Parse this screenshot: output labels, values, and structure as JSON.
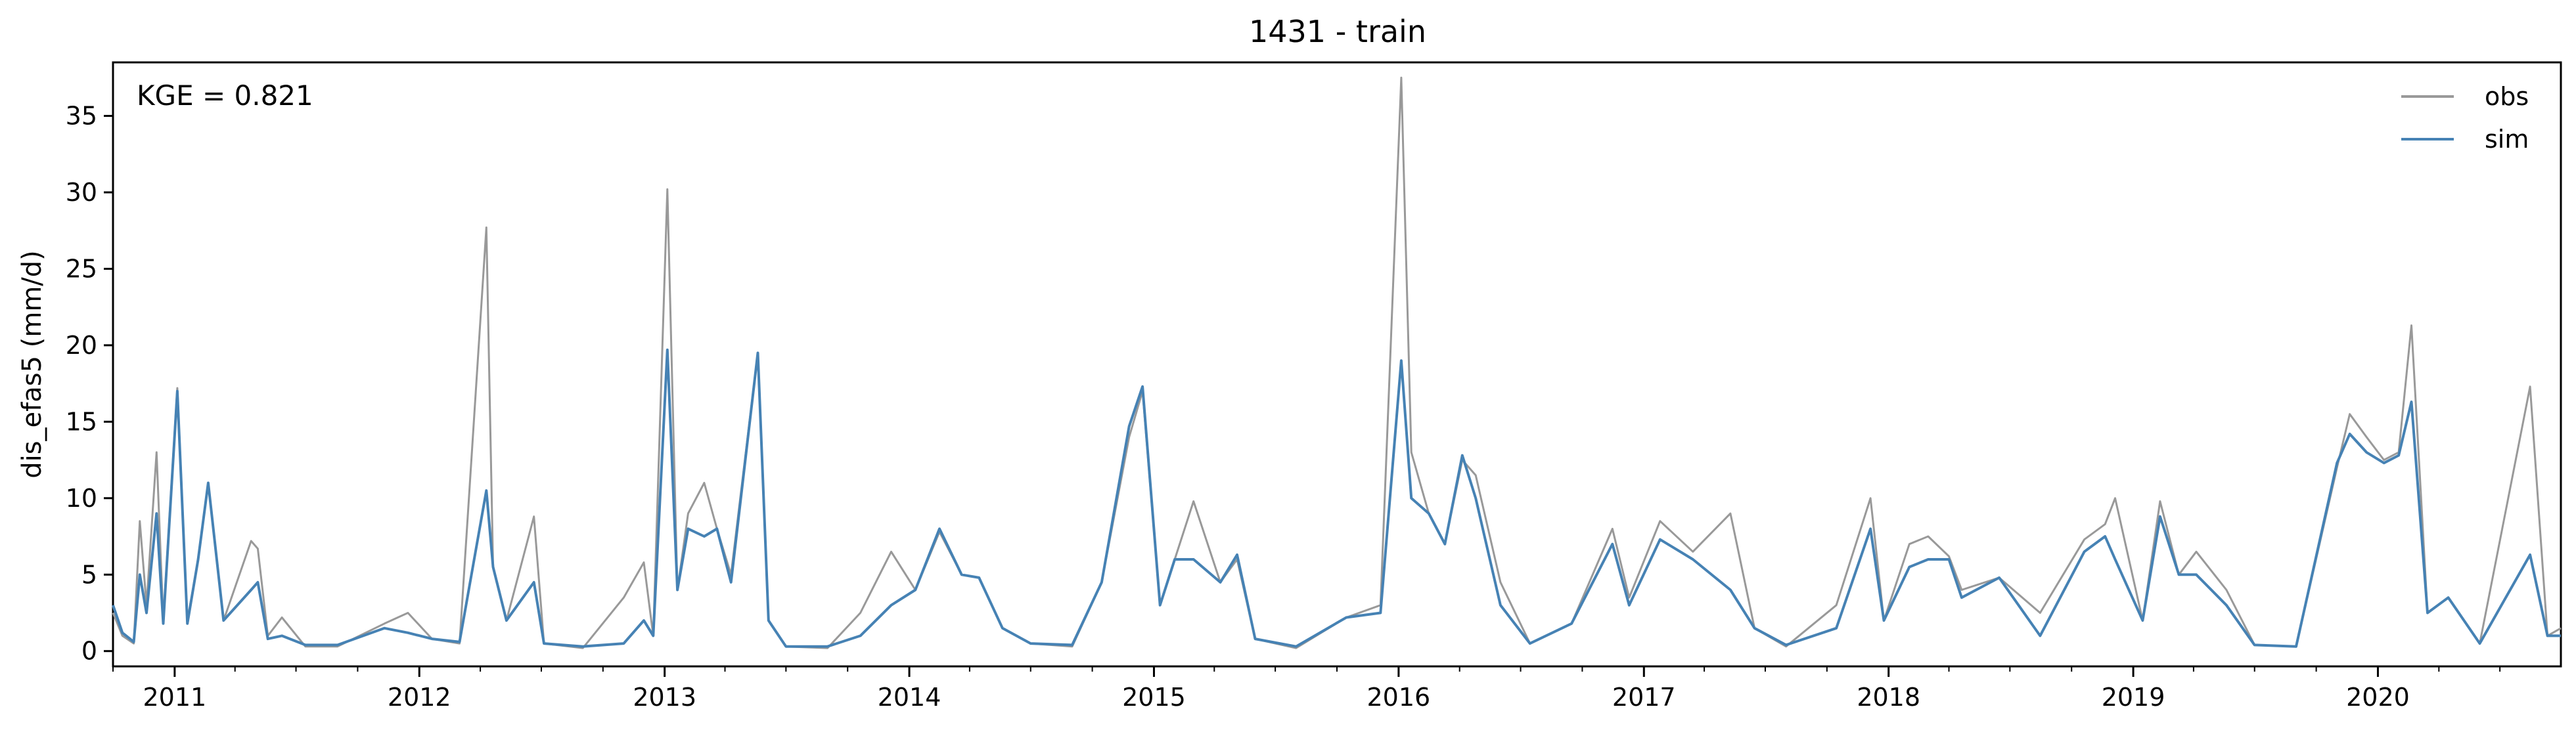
{
  "chart_data": {
    "type": "line",
    "title": "1431 - train",
    "xlabel": "",
    "ylabel": "dis_efas5 (mm/d)",
    "xlim": [
      "2010-10-01",
      "2020-09-30"
    ],
    "ylim": [
      -1,
      38.5
    ],
    "grid": false,
    "legend_position": "top-right",
    "annotation": "KGE = 0.821",
    "x_ticks": [
      "2011",
      "2012",
      "2013",
      "2014",
      "2015",
      "2016",
      "2017",
      "2018",
      "2019",
      "2020"
    ],
    "y_ticks": [
      "0",
      "5",
      "10",
      "15",
      "20",
      "25",
      "30",
      "35"
    ],
    "series": [
      {
        "name": "obs",
        "color": "#999999",
        "points": [
          [
            "2010-10-01",
            2.5
          ],
          [
            "2010-10-15",
            1.0
          ],
          [
            "2010-11-01",
            0.5
          ],
          [
            "2010-11-10",
            8.5
          ],
          [
            "2010-11-20",
            3.0
          ],
          [
            "2010-12-05",
            13.0
          ],
          [
            "2010-12-15",
            2.0
          ],
          [
            "2011-01-05",
            17.2
          ],
          [
            "2011-01-20",
            2.0
          ],
          [
            "2011-02-05",
            6.0
          ],
          [
            "2011-02-20",
            11.0
          ],
          [
            "2011-03-15",
            2.0
          ],
          [
            "2011-04-25",
            7.2
          ],
          [
            "2011-05-05",
            6.7
          ],
          [
            "2011-05-20",
            1.0
          ],
          [
            "2011-06-10",
            2.2
          ],
          [
            "2011-07-15",
            0.3
          ],
          [
            "2011-09-01",
            0.3
          ],
          [
            "2011-11-10",
            1.8
          ],
          [
            "2011-12-15",
            2.5
          ],
          [
            "2012-01-20",
            0.8
          ],
          [
            "2012-03-01",
            0.5
          ],
          [
            "2012-04-10",
            27.7
          ],
          [
            "2012-04-20",
            5.5
          ],
          [
            "2012-05-10",
            2.0
          ],
          [
            "2012-06-20",
            8.8
          ],
          [
            "2012-07-05",
            0.5
          ],
          [
            "2012-09-01",
            0.2
          ],
          [
            "2012-11-01",
            3.5
          ],
          [
            "2012-12-01",
            5.8
          ],
          [
            "2012-12-15",
            1.0
          ],
          [
            "2013-01-05",
            30.2
          ],
          [
            "2013-01-20",
            4.0
          ],
          [
            "2013-02-05",
            9.0
          ],
          [
            "2013-03-01",
            11.0
          ],
          [
            "2013-03-20",
            8.0
          ],
          [
            "2013-04-10",
            5.0
          ],
          [
            "2013-05-20",
            19.5
          ],
          [
            "2013-06-05",
            2.0
          ],
          [
            "2013-07-01",
            0.3
          ],
          [
            "2013-09-01",
            0.2
          ],
          [
            "2013-10-20",
            2.5
          ],
          [
            "2013-12-05",
            6.5
          ],
          [
            "2014-01-10",
            4.0
          ],
          [
            "2014-02-15",
            7.8
          ],
          [
            "2014-03-20",
            5.0
          ],
          [
            "2014-04-15",
            4.8
          ],
          [
            "2014-05-20",
            1.5
          ],
          [
            "2014-07-01",
            0.5
          ],
          [
            "2014-09-01",
            0.3
          ],
          [
            "2014-10-15",
            4.5
          ],
          [
            "2014-11-25",
            14.0
          ],
          [
            "2014-12-15",
            17.0
          ],
          [
            "2015-01-10",
            3.0
          ],
          [
            "2015-02-01",
            6.0
          ],
          [
            "2015-03-01",
            9.8
          ],
          [
            "2015-04-10",
            4.5
          ],
          [
            "2015-05-05",
            6.0
          ],
          [
            "2015-06-01",
            0.8
          ],
          [
            "2015-08-01",
            0.2
          ],
          [
            "2015-10-15",
            2.2
          ],
          [
            "2015-12-05",
            3.0
          ],
          [
            "2016-01-05",
            37.5
          ],
          [
            "2016-01-20",
            13.0
          ],
          [
            "2016-02-15",
            9.0
          ],
          [
            "2016-03-10",
            7.0
          ],
          [
            "2016-04-05",
            12.5
          ],
          [
            "2016-04-25",
            11.5
          ],
          [
            "2016-06-01",
            4.5
          ],
          [
            "2016-07-15",
            0.5
          ],
          [
            "2016-09-15",
            1.8
          ],
          [
            "2016-11-15",
            8.0
          ],
          [
            "2016-12-10",
            3.5
          ],
          [
            "2017-01-25",
            8.5
          ],
          [
            "2017-03-15",
            6.5
          ],
          [
            "2017-05-10",
            9.0
          ],
          [
            "2017-06-15",
            1.5
          ],
          [
            "2017-08-01",
            0.3
          ],
          [
            "2017-10-15",
            3.0
          ],
          [
            "2017-12-05",
            10.0
          ],
          [
            "2017-12-25",
            2.0
          ],
          [
            "2018-02-01",
            7.0
          ],
          [
            "2018-03-01",
            7.5
          ],
          [
            "2018-04-01",
            6.2
          ],
          [
            "2018-04-20",
            4.0
          ],
          [
            "2018-06-15",
            4.8
          ],
          [
            "2018-08-15",
            2.5
          ],
          [
            "2018-10-20",
            7.3
          ],
          [
            "2018-11-20",
            8.3
          ],
          [
            "2018-12-05",
            10.0
          ],
          [
            "2019-01-15",
            2.0
          ],
          [
            "2019-02-10",
            9.8
          ],
          [
            "2019-03-10",
            5.0
          ],
          [
            "2019-04-05",
            6.5
          ],
          [
            "2019-05-20",
            4.0
          ],
          [
            "2019-07-01",
            0.4
          ],
          [
            "2019-09-01",
            0.3
          ],
          [
            "2019-11-01",
            12.0
          ],
          [
            "2019-11-20",
            15.5
          ],
          [
            "2019-12-15",
            14.0
          ],
          [
            "2020-01-10",
            12.5
          ],
          [
            "2020-02-01",
            13.0
          ],
          [
            "2020-02-20",
            21.3
          ],
          [
            "2020-03-15",
            2.5
          ],
          [
            "2020-04-15",
            3.5
          ],
          [
            "2020-06-01",
            0.5
          ],
          [
            "2020-08-15",
            17.3
          ],
          [
            "2020-09-10",
            1.0
          ],
          [
            "2020-09-30",
            1.5
          ]
        ]
      },
      {
        "name": "sim",
        "color": "#4682b4",
        "points": [
          [
            "2010-10-01",
            3.0
          ],
          [
            "2010-10-15",
            1.2
          ],
          [
            "2010-11-01",
            0.6
          ],
          [
            "2010-11-10",
            5.0
          ],
          [
            "2010-11-20",
            2.5
          ],
          [
            "2010-12-05",
            9.0
          ],
          [
            "2010-12-15",
            1.8
          ],
          [
            "2011-01-05",
            17.0
          ],
          [
            "2011-01-20",
            1.8
          ],
          [
            "2011-02-05",
            6.0
          ],
          [
            "2011-02-20",
            11.0
          ],
          [
            "2011-03-15",
            2.0
          ],
          [
            "2011-04-25",
            4.0
          ],
          [
            "2011-05-05",
            4.5
          ],
          [
            "2011-05-20",
            0.8
          ],
          [
            "2011-06-10",
            1.0
          ],
          [
            "2011-07-15",
            0.4
          ],
          [
            "2011-09-01",
            0.4
          ],
          [
            "2011-11-10",
            1.5
          ],
          [
            "2011-12-15",
            1.2
          ],
          [
            "2012-01-20",
            0.8
          ],
          [
            "2012-03-01",
            0.6
          ],
          [
            "2012-04-10",
            10.5
          ],
          [
            "2012-04-20",
            5.5
          ],
          [
            "2012-05-10",
            2.0
          ],
          [
            "2012-06-20",
            4.5
          ],
          [
            "2012-07-05",
            0.5
          ],
          [
            "2012-09-01",
            0.3
          ],
          [
            "2012-11-01",
            0.5
          ],
          [
            "2012-12-01",
            2.0
          ],
          [
            "2012-12-15",
            1.0
          ],
          [
            "2013-01-05",
            19.7
          ],
          [
            "2013-01-20",
            4.0
          ],
          [
            "2013-02-05",
            8.0
          ],
          [
            "2013-03-01",
            7.5
          ],
          [
            "2013-03-20",
            8.0
          ],
          [
            "2013-04-10",
            4.5
          ],
          [
            "2013-05-20",
            19.5
          ],
          [
            "2013-06-05",
            2.0
          ],
          [
            "2013-07-01",
            0.3
          ],
          [
            "2013-09-01",
            0.3
          ],
          [
            "2013-10-20",
            1.0
          ],
          [
            "2013-12-05",
            3.0
          ],
          [
            "2014-01-10",
            4.0
          ],
          [
            "2014-02-15",
            8.0
          ],
          [
            "2014-03-20",
            5.0
          ],
          [
            "2014-04-15",
            4.8
          ],
          [
            "2014-05-20",
            1.5
          ],
          [
            "2014-07-01",
            0.5
          ],
          [
            "2014-09-01",
            0.4
          ],
          [
            "2014-10-15",
            4.5
          ],
          [
            "2014-11-25",
            14.7
          ],
          [
            "2014-12-15",
            17.3
          ],
          [
            "2015-01-10",
            3.0
          ],
          [
            "2015-02-01",
            6.0
          ],
          [
            "2015-03-01",
            6.0
          ],
          [
            "2015-04-10",
            4.5
          ],
          [
            "2015-05-05",
            6.3
          ],
          [
            "2015-06-01",
            0.8
          ],
          [
            "2015-08-01",
            0.3
          ],
          [
            "2015-10-15",
            2.2
          ],
          [
            "2015-12-05",
            2.5
          ],
          [
            "2016-01-05",
            19.0
          ],
          [
            "2016-01-20",
            10.0
          ],
          [
            "2016-02-15",
            9.0
          ],
          [
            "2016-03-10",
            7.0
          ],
          [
            "2016-04-05",
            12.8
          ],
          [
            "2016-04-25",
            10.0
          ],
          [
            "2016-06-01",
            3.0
          ],
          [
            "2016-07-15",
            0.5
          ],
          [
            "2016-09-15",
            1.8
          ],
          [
            "2016-11-15",
            7.0
          ],
          [
            "2016-12-10",
            3.0
          ],
          [
            "2017-01-25",
            7.3
          ],
          [
            "2017-03-15",
            6.0
          ],
          [
            "2017-05-10",
            4.0
          ],
          [
            "2017-06-15",
            1.5
          ],
          [
            "2017-08-01",
            0.4
          ],
          [
            "2017-10-15",
            1.5
          ],
          [
            "2017-12-05",
            8.0
          ],
          [
            "2017-12-25",
            2.0
          ],
          [
            "2018-02-01",
            5.5
          ],
          [
            "2018-03-01",
            6.0
          ],
          [
            "2018-04-01",
            6.0
          ],
          [
            "2018-04-20",
            3.5
          ],
          [
            "2018-06-15",
            4.8
          ],
          [
            "2018-08-15",
            1.0
          ],
          [
            "2018-10-20",
            6.5
          ],
          [
            "2018-11-20",
            7.5
          ],
          [
            "2018-12-05",
            6.0
          ],
          [
            "2019-01-15",
            2.0
          ],
          [
            "2019-02-10",
            8.8
          ],
          [
            "2019-03-10",
            5.0
          ],
          [
            "2019-04-05",
            5.0
          ],
          [
            "2019-05-20",
            3.0
          ],
          [
            "2019-07-01",
            0.4
          ],
          [
            "2019-09-01",
            0.3
          ],
          [
            "2019-11-01",
            12.3
          ],
          [
            "2019-11-20",
            14.2
          ],
          [
            "2019-12-15",
            13.0
          ],
          [
            "2020-01-10",
            12.3
          ],
          [
            "2020-02-01",
            12.8
          ],
          [
            "2020-02-20",
            16.3
          ],
          [
            "2020-03-15",
            2.5
          ],
          [
            "2020-04-15",
            3.5
          ],
          [
            "2020-06-01",
            0.5
          ],
          [
            "2020-08-15",
            6.3
          ],
          [
            "2020-09-10",
            1.0
          ],
          [
            "2020-09-30",
            1.0
          ]
        ]
      }
    ]
  }
}
